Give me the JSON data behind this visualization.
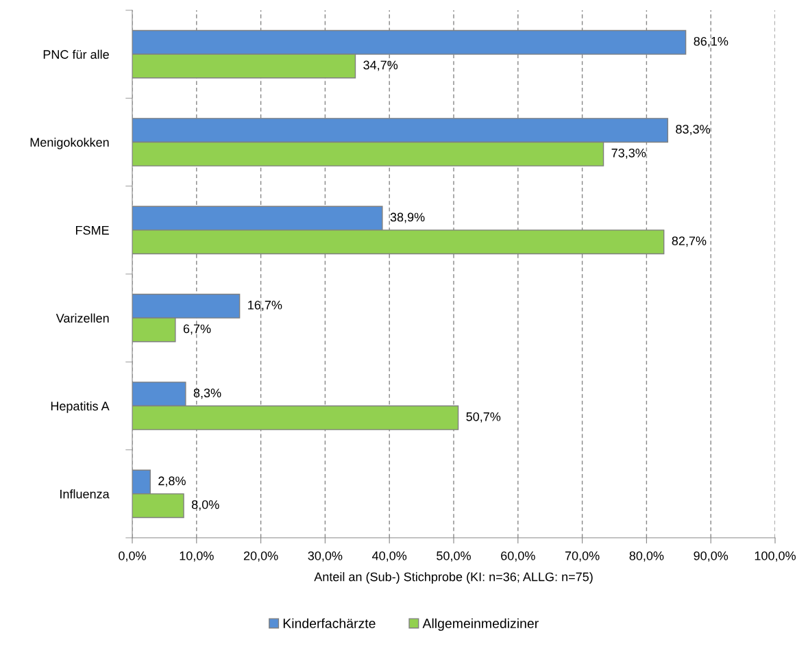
{
  "chart_data": {
    "type": "bar",
    "orientation": "horizontal",
    "categories": [
      "PNC für alle",
      "Menigokokken",
      "FSME",
      "Varizellen",
      "Hepatitis A",
      "Influenza"
    ],
    "series": [
      {
        "name": "Kinderfachärzte",
        "color": "#558ed5",
        "values": [
          86.1,
          83.3,
          38.9,
          16.7,
          8.3,
          2.8
        ],
        "value_labels": [
          "86,1%",
          "83,3%",
          "38,9%",
          "16,7%",
          "8,3%",
          "2,8%"
        ]
      },
      {
        "name": "Allgemeinmediziner",
        "color": "#92d050",
        "values": [
          34.7,
          73.3,
          82.7,
          6.7,
          50.7,
          8.0
        ],
        "value_labels": [
          "34,7%",
          "73,3%",
          "82,7%",
          "6,7%",
          "50,7%",
          "8,0%"
        ]
      }
    ],
    "xlabel": "Anteil an (Sub-) Stichprobe (KI: n=36; ALLG: n=75)",
    "xlim": [
      0,
      100
    ],
    "xticks": [
      {
        "value": 0,
        "label": "0,0%"
      },
      {
        "value": 10,
        "label": "10,0%"
      },
      {
        "value": 20,
        "label": "20,0%"
      },
      {
        "value": 30,
        "label": "30,0%"
      },
      {
        "value": 40,
        "label": "40,0%"
      },
      {
        "value": 50,
        "label": "50,0%"
      },
      {
        "value": 60,
        "label": "60,0%"
      },
      {
        "value": 70,
        "label": "70,0%"
      },
      {
        "value": 80,
        "label": "80,0%"
      },
      {
        "value": 90,
        "label": "90,0%"
      },
      {
        "value": 100,
        "label": "100,0%"
      }
    ],
    "grid": "x",
    "line_style": "dashed",
    "legend": "bottom"
  }
}
